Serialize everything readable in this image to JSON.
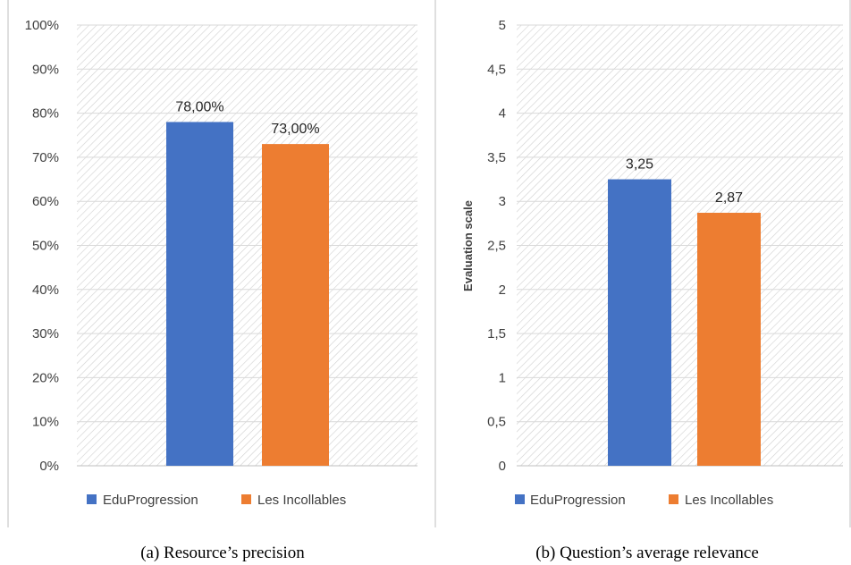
{
  "colors": {
    "series_1": "#4472C4",
    "series_2": "#ED7D31",
    "grid": "#D9D9D9",
    "hatch": "#D0D0D0",
    "frame": "#BFBFBF"
  },
  "chart_data": [
    {
      "type": "bar",
      "panel": "a",
      "caption": "(a) Resource’s precision",
      "ylabel": "",
      "ylim": [
        0,
        100
      ],
      "y_ticks": [
        "0%",
        "10%",
        "20%",
        "30%",
        "40%",
        "50%",
        "60%",
        "70%",
        "80%",
        "90%",
        "100%"
      ],
      "grid": true,
      "legend_position": "bottom",
      "series": [
        {
          "name": "EduProgression",
          "values": [
            78.0
          ],
          "label": "78,00%"
        },
        {
          "name": "Les Incollables",
          "values": [
            73.0
          ],
          "label": "73,00%"
        }
      ]
    },
    {
      "type": "bar",
      "panel": "b",
      "caption": "(b) Question’s average relevance",
      "ylabel": "Evaluation scale",
      "ylim": [
        0,
        5
      ],
      "y_ticks": [
        "0",
        "0,5",
        "1",
        "1,5",
        "2",
        "2,5",
        "3",
        "3,5",
        "4",
        "4,5",
        "5"
      ],
      "grid": true,
      "legend_position": "bottom",
      "series": [
        {
          "name": "EduProgression",
          "values": [
            3.25
          ],
          "label": "3,25"
        },
        {
          "name": "Les Incollables",
          "values": [
            2.87
          ],
          "label": "2,87"
        }
      ]
    }
  ]
}
